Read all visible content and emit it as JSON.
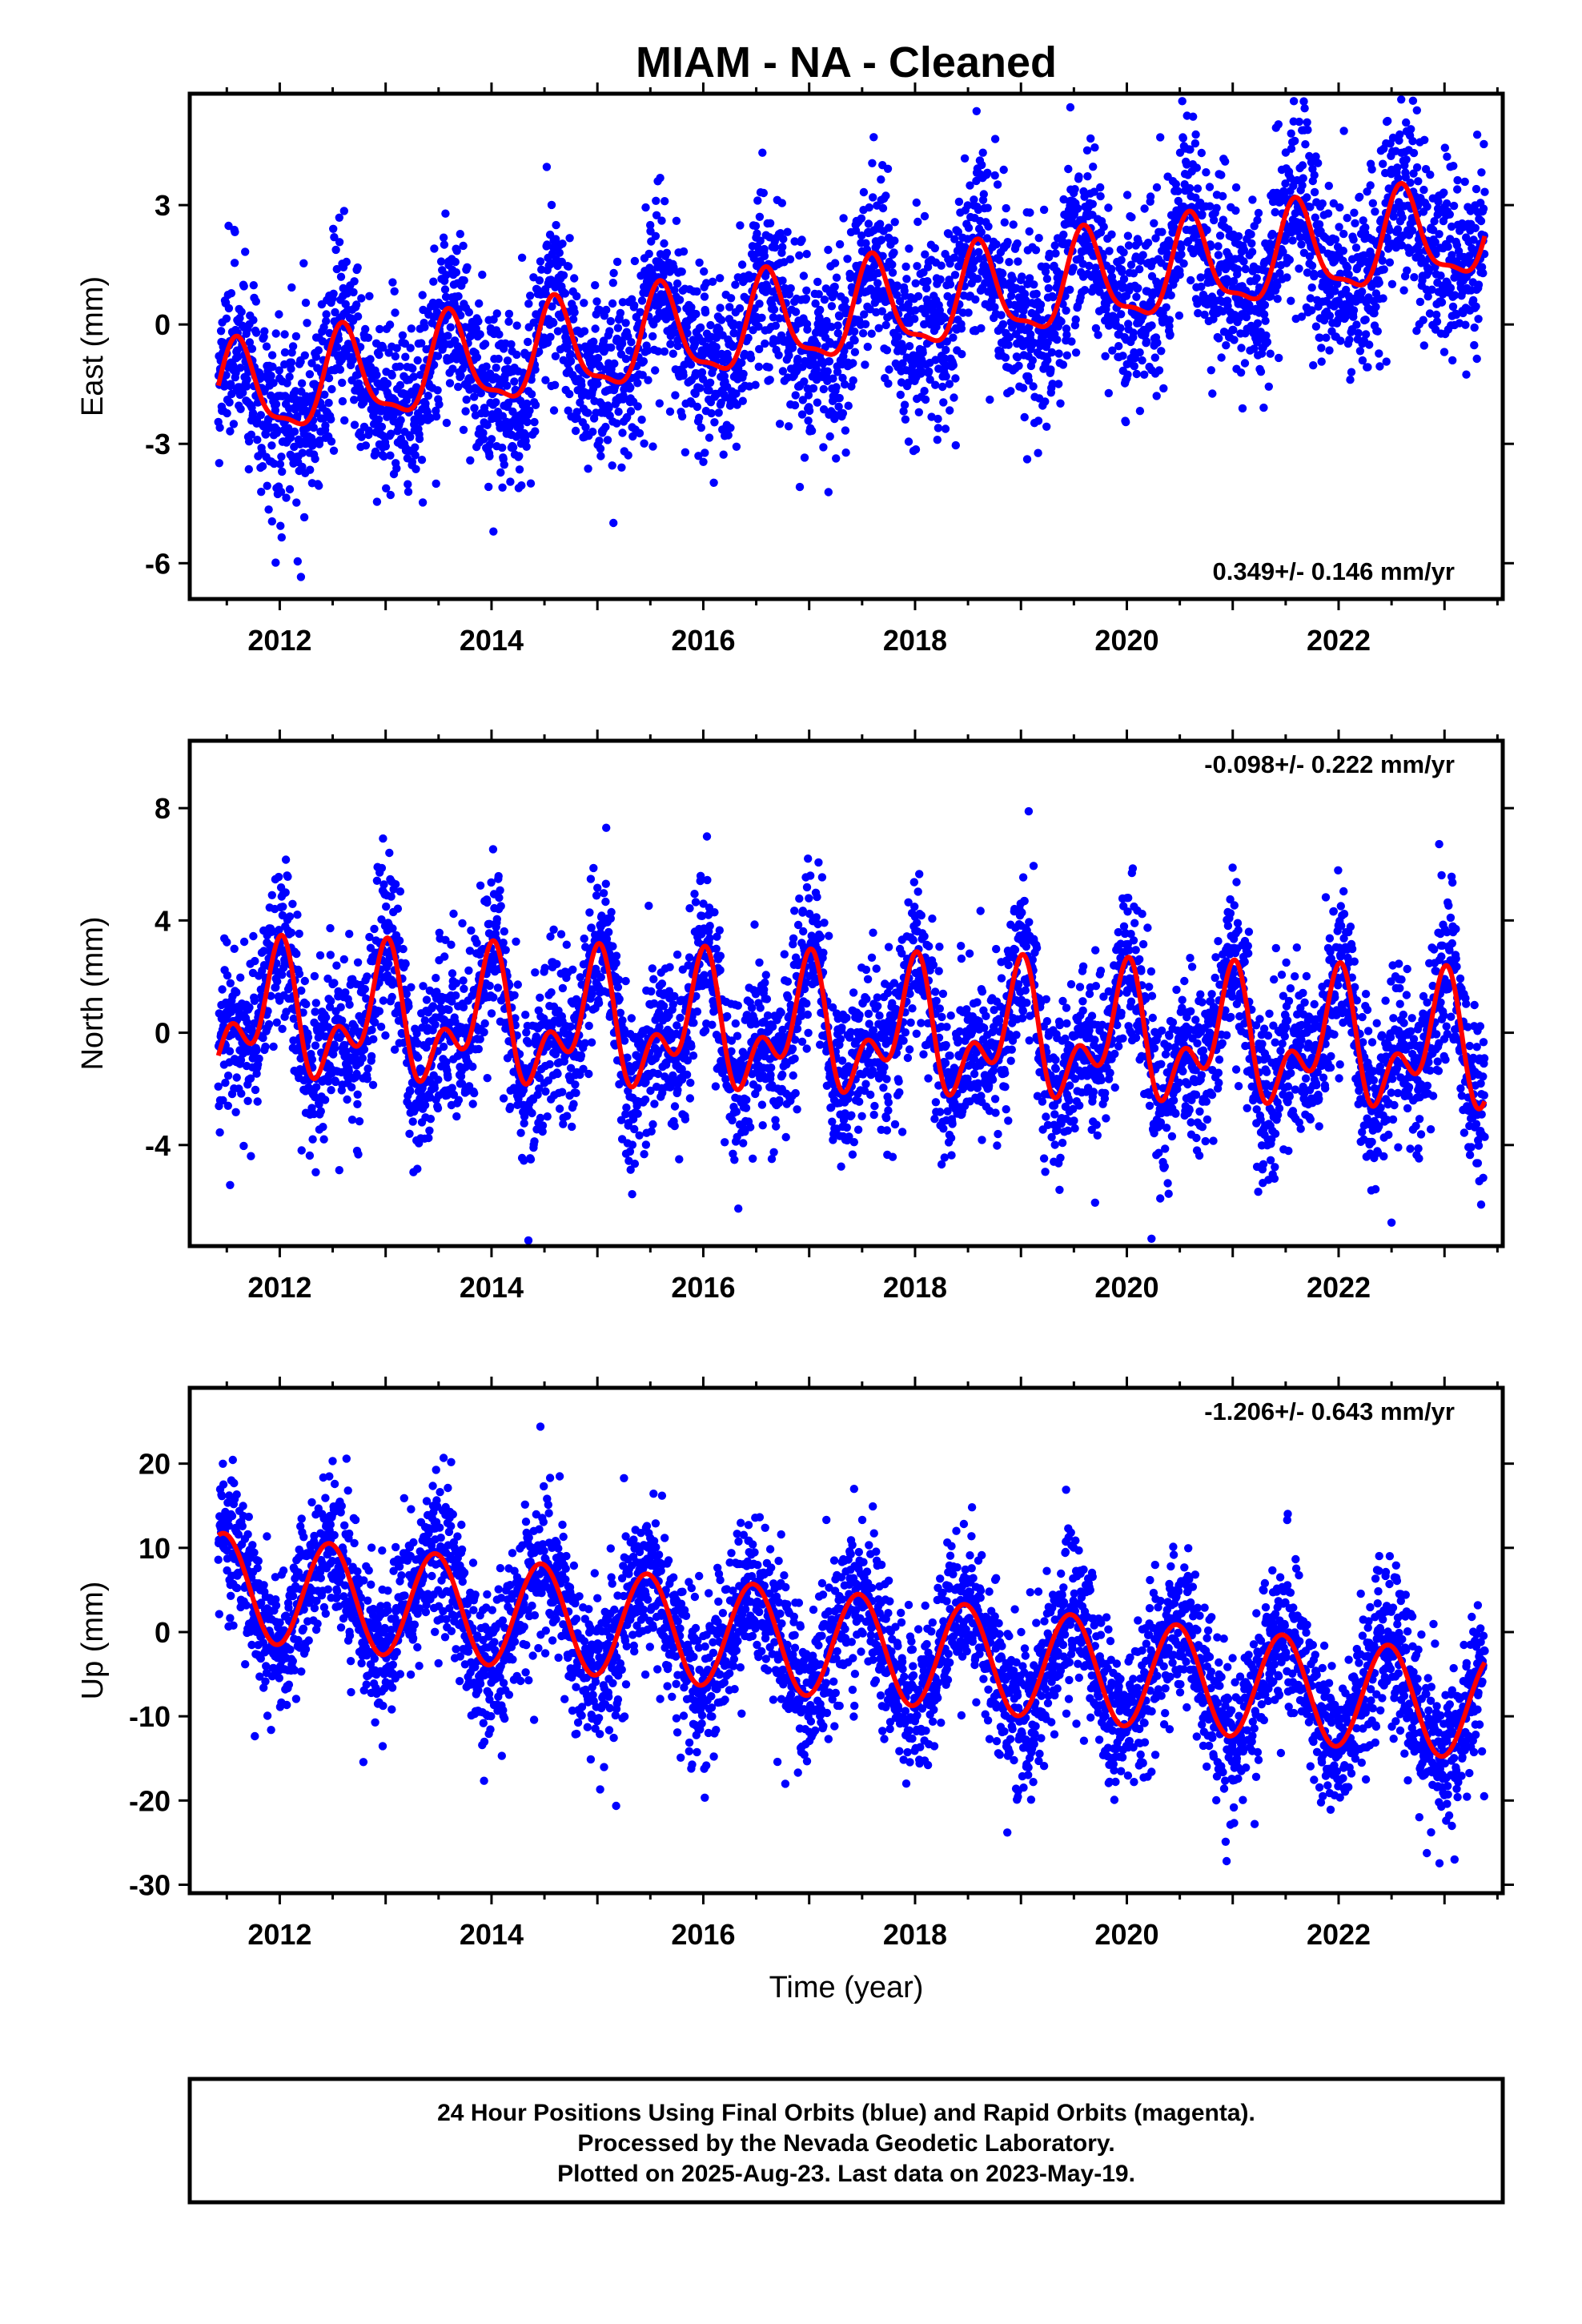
{
  "title": "MIAM  - NA - Cleaned",
  "colors": {
    "points": "#0000ff",
    "model": "#ff0000",
    "frame": "#000000"
  },
  "chart_data": [
    {
      "type": "scatter",
      "component": "East",
      "ylabel": "East (mm)",
      "xlabel": "",
      "rate_label": "0.349+/- 0.146 mm/yr",
      "rate_position": "bottom-right",
      "xlim": [
        2011.15,
        2023.55
      ],
      "ylim": [
        -6.9,
        5.8
      ],
      "xticks": [
        2012,
        2014,
        2016,
        2018,
        2020,
        2022
      ],
      "xtick_labels": [
        "2012",
        "2014",
        "2016",
        "2018",
        "2020",
        "2022"
      ],
      "yticks": [
        -6,
        -3,
        0,
        3
      ],
      "ytick_labels": [
        "-6",
        "-3",
        "0",
        "3"
      ],
      "series": [],
      "model": {
        "offset": -1.85,
        "trend": 0.349,
        "t0": 2011.4,
        "annual_sin": -0.7,
        "annual_cos": -0.9,
        "semiannual_sin": 0.3,
        "semiannual_cos": 0.2,
        "t_start": 2011.42,
        "t_end": 2023.38
      },
      "scatter": {
        "n_points": 4200,
        "sd": 1.15,
        "t_start": 2011.42,
        "t_end": 2023.38
      }
    },
    {
      "type": "scatter",
      "component": "North",
      "ylabel": "North (mm)",
      "xlabel": "",
      "rate_label": "-0.098+/- 0.222 mm/yr",
      "rate_position": "top-right",
      "xlim": [
        2011.15,
        2023.55
      ],
      "ylim": [
        -7.6,
        10.4
      ],
      "xticks": [
        2012,
        2014,
        2016,
        2018,
        2020,
        2022
      ],
      "xtick_labels": [
        "2012",
        "2014",
        "2016",
        "2018",
        "2020",
        "2022"
      ],
      "yticks": [
        -4,
        0,
        4,
        8
      ],
      "ytick_labels": [
        "-4",
        "0",
        "4",
        "8"
      ],
      "series": [],
      "model": {
        "offset": 0.6,
        "trend": -0.098,
        "t0": 2011.4,
        "annual_sin": -0.3,
        "annual_cos": 1.7,
        "semiannual_sin": 0.5,
        "semiannual_cos": 1.2,
        "t_start": 2011.42,
        "t_end": 2023.38
      },
      "scatter": {
        "n_points": 4200,
        "sd": 1.45,
        "t_start": 2011.42,
        "t_end": 2023.38
      }
    },
    {
      "type": "scatter",
      "component": "Up",
      "ylabel": "Up (mm)",
      "xlabel": "Time (year)",
      "rate_label": "-1.206+/- 0.643 mm/yr",
      "rate_position": "top-right",
      "xlim": [
        2011.15,
        2023.55
      ],
      "ylim": [
        -31,
        29
      ],
      "xticks": [
        2012,
        2014,
        2016,
        2018,
        2020,
        2022
      ],
      "xtick_labels": [
        "2012",
        "2014",
        "2016",
        "2018",
        "2020",
        "2022"
      ],
      "yticks": [
        -30,
        -20,
        -10,
        0,
        10,
        20
      ],
      "ytick_labels": [
        "-30",
        "-20",
        "-10",
        "0",
        "10",
        "20"
      ],
      "series": [],
      "model": {
        "offset": 5.5,
        "trend": -1.206,
        "t0": 2011.4,
        "annual_sin": 1.2,
        "annual_cos": -6.2,
        "semiannual_sin": 0.0,
        "semiannual_cos": 0.0,
        "t_start": 2011.42,
        "t_end": 2023.38
      },
      "scatter": {
        "n_points": 4200,
        "sd": 4.6,
        "t_start": 2011.42,
        "t_end": 2023.38
      }
    }
  ],
  "footer": {
    "line1": "24 Hour Positions Using Final Orbits (blue) and Rapid Orbits (magenta).",
    "line2": "Processed by the Nevada Geodetic Laboratory.",
    "line3": "Plotted on 2025-Aug-23. Last data on 2023-May-19."
  }
}
